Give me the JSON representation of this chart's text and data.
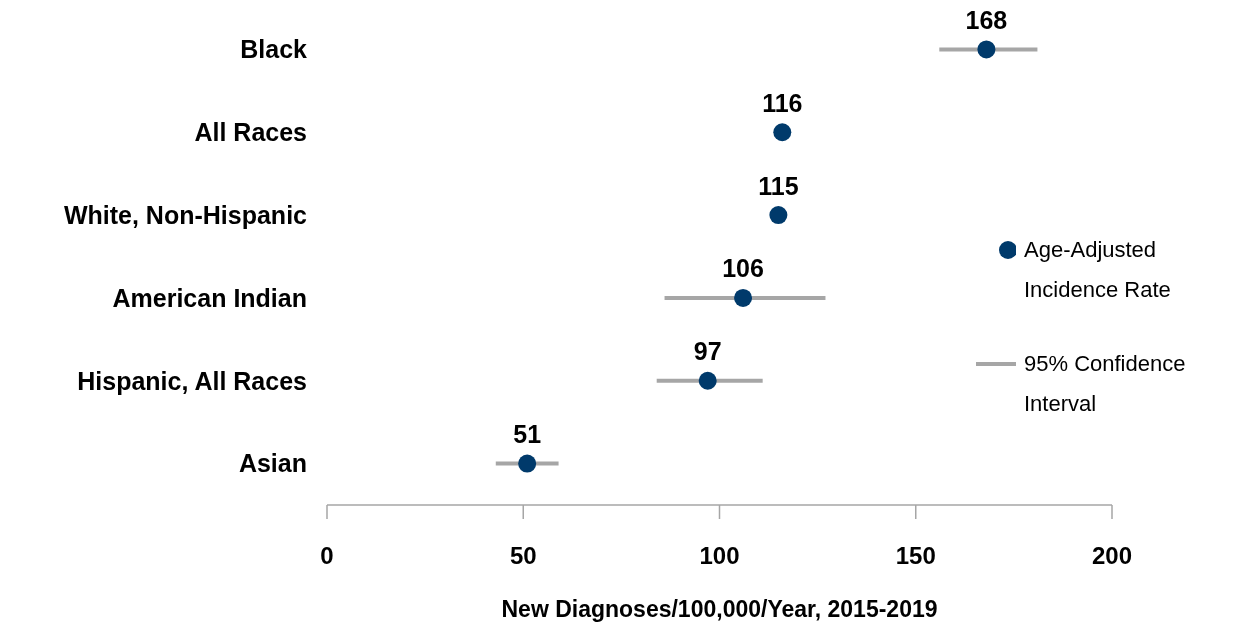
{
  "chart_data": {
    "type": "scatter",
    "xlabel": "New Diagnoses/100,000/Year, 2015-2019",
    "categories": [
      "Black",
      "All Races",
      "White, Non-Hispanic",
      "American Indian",
      "Hispanic, All Races",
      "Asian"
    ],
    "series": [
      {
        "name": "Age-Adjusted Incidence Rate",
        "color": "#003a6b",
        "values": [
          168,
          116,
          115,
          106,
          97,
          51
        ],
        "errors": [
          [
            156,
            181
          ],
          null,
          null,
          [
            86,
            127
          ],
          [
            84,
            111
          ],
          [
            43,
            59
          ]
        ]
      }
    ],
    "annotations": [
      "95% Confidence Interval"
    ],
    "xlim": [
      0,
      200
    ],
    "xticks": [
      0,
      50,
      100,
      150,
      200
    ],
    "orientation": "horizontal",
    "legend": "right",
    "data_labels": true,
    "marker": "circle"
  }
}
